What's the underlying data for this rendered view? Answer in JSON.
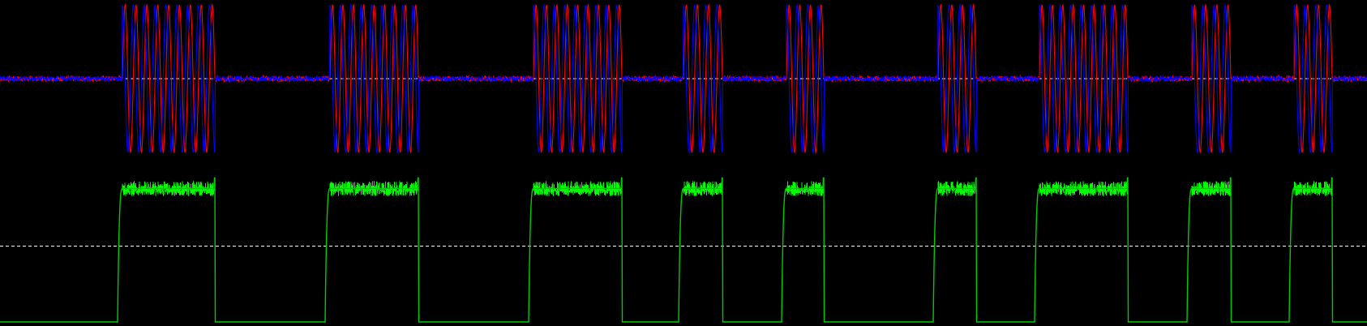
{
  "chart_data": [
    {
      "type": "line",
      "title": "",
      "xlabel": "",
      "ylabel": "",
      "grid": false,
      "xlim": [
        0,
        1686
      ],
      "ylim": [
        -1,
        1
      ],
      "reference_lines": [
        0
      ],
      "bursts": [
        {
          "start": 151,
          "end": 265,
          "cycles": 8.5
        },
        {
          "start": 407,
          "end": 516,
          "cycles": 8.5
        },
        {
          "start": 658,
          "end": 767,
          "cycles": 8.5
        },
        {
          "start": 843,
          "end": 891,
          "cycles": 3.5
        },
        {
          "start": 970,
          "end": 1016,
          "cycles": 3.5
        },
        {
          "start": 1157,
          "end": 1204,
          "cycles": 3.5
        },
        {
          "start": 1282,
          "end": 1391,
          "cycles": 8.5
        },
        {
          "start": 1470,
          "end": 1518,
          "cycles": 3.5
        },
        {
          "start": 1596,
          "end": 1643,
          "cycles": 3.5
        }
      ],
      "series": [
        {
          "color": "#ff0000",
          "phase": "sin"
        },
        {
          "color": "#0000ff",
          "phase": "cos"
        }
      ]
    },
    {
      "type": "line",
      "title": "",
      "xlabel": "",
      "ylabel": "",
      "grid": false,
      "xlim": [
        0,
        1686
      ],
      "ylim": [
        0,
        1
      ],
      "reference_lines": [
        0.5
      ],
      "series": [
        {
          "color": "#00cc00",
          "fill_color": "#00ff00",
          "low": 0.0,
          "high": 0.88
        }
      ]
    }
  ]
}
